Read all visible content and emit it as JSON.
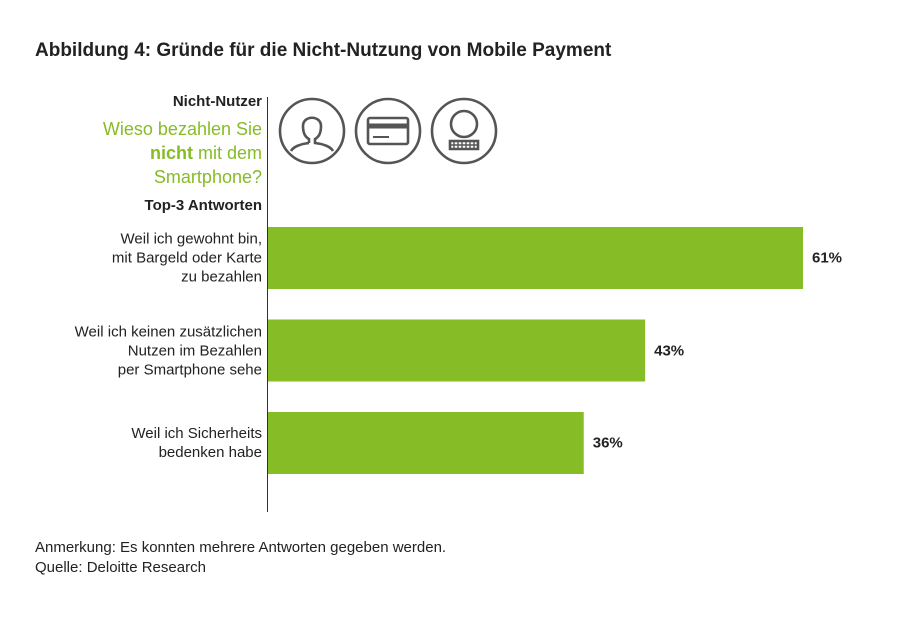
{
  "title": "Abbildung 4: Gründe für die Nicht-Nutzung von Mobile Payment",
  "group_label": "Nicht-Nutzer",
  "question": {
    "part1": "Wieso bezahlen Sie",
    "emphasis": "nicht",
    "part2": "mit dem",
    "part3": "Smartphone?"
  },
  "top3_label": "Top-3 Antworten",
  "icons": [
    "person-icon",
    "credit-card-icon",
    "face-keypad-icon"
  ],
  "colors": {
    "bar": "#86bc25",
    "question": "#86bc25",
    "icon": "#555555"
  },
  "chart_data": {
    "type": "bar",
    "orientation": "horizontal",
    "categories": [
      "Weil ich gewohnt bin, mit Bargeld oder Karte zu bezahlen",
      "Weil ich keinen zusätzlichen Nutzen im Bezahlen per Smartphone sehe",
      "Weil ich Sicherheits bedenken habe"
    ],
    "category_lines": [
      [
        "Weil ich gewohnt bin,",
        "mit Bargeld oder Karte",
        "zu bezahlen"
      ],
      [
        "Weil ich keinen zusätzlichen",
        "Nutzen im Bezahlen",
        "per Smartphone sehe"
      ],
      [
        "Weil ich Sicherheits",
        "bedenken habe"
      ]
    ],
    "values": [
      61,
      43,
      36
    ],
    "value_labels": [
      "61%",
      "43%",
      "36%"
    ],
    "unit": "%",
    "xlim": [
      0,
      62
    ],
    "title": "",
    "xlabel": "",
    "ylabel": "",
    "grid": false,
    "legend": "none"
  },
  "note": "Anmerkung: Es konnten mehrere Antworten gegeben werden.",
  "source": "Quelle: Deloitte Research"
}
